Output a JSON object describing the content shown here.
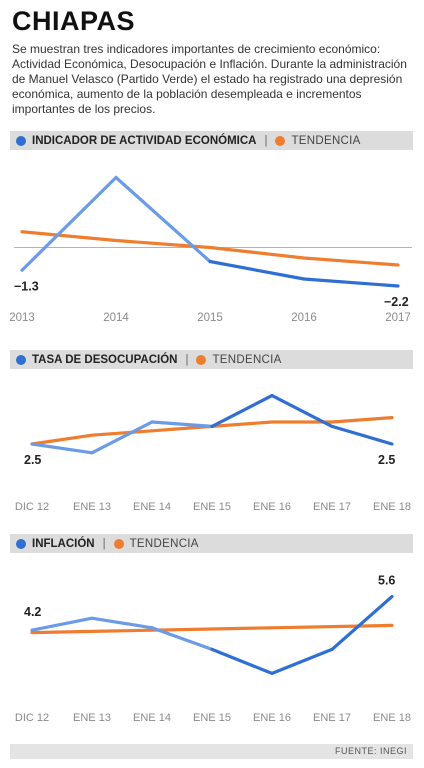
{
  "title": "CHIAPAS",
  "intro": "Se muestran tres indicadores importantes de crecimiento económico: Actividad Económica, Desocupación e Inflación. Durante la administración de Manuel Velasco (Partido Verde) el estado ha registrado una depresión económica, aumento de la población desempleada e incrementos importantes de los precios.",
  "legend_trend": "TENDENCIA",
  "source": "FUENTE: INEGI",
  "colors": {
    "series": "#2f6fd3",
    "series_light": "#6b9be6",
    "trend": "#ee7d2f",
    "header_bg": "#dcdcdc"
  },
  "chart_data": [
    {
      "type": "line",
      "title": "INDICADOR DE ACTIVIDAD ECONÓMICA",
      "categories": [
        "2013",
        "2014",
        "2015",
        "2016",
        "2017"
      ],
      "series": [
        {
          "name": "INDICADOR DE ACTIVIDAD ECONÓMICA",
          "values": [
            -1.3,
            4.0,
            -0.8,
            -1.8,
            -2.2
          ]
        },
        {
          "name": "TENDENCIA",
          "values": [
            0.9,
            0.4,
            0.0,
            -0.6,
            -1.0
          ]
        }
      ],
      "data_labels": [
        {
          "index": 0,
          "text": "−1.3"
        },
        {
          "index": 4,
          "text": "−2.2"
        }
      ],
      "ylim": [
        -3,
        5
      ],
      "reference_line": 0,
      "grid": false
    },
    {
      "type": "line",
      "title": "TASA DE DESOCUPACIÓN",
      "categories": [
        "DIC 12",
        "ENE 13",
        "ENE 14",
        "ENE 15",
        "ENE 16",
        "ENE 17",
        "ENE 18"
      ],
      "series": [
        {
          "name": "TASA DE DESOCUPACIÓN",
          "values": [
            2.5,
            2.3,
            3.0,
            2.9,
            3.6,
            2.9,
            2.5
          ]
        },
        {
          "name": "TENDENCIA",
          "values": [
            2.5,
            2.7,
            2.8,
            2.9,
            3.0,
            3.0,
            3.1
          ]
        }
      ],
      "data_labels": [
        {
          "index": 0,
          "text": "2.5"
        },
        {
          "index": 6,
          "text": "2.5"
        }
      ],
      "ylim": [
        1.5,
        4.0
      ],
      "grid": false
    },
    {
      "type": "line",
      "title": "INFLACIÓN",
      "categories": [
        "DIC 12",
        "ENE 13",
        "ENE 14",
        "ENE 15",
        "ENE 16",
        "ENE 17",
        "ENE 18"
      ],
      "series": [
        {
          "name": "INFLACIÓN",
          "values": [
            4.2,
            4.7,
            4.3,
            3.4,
            2.4,
            3.4,
            5.6
          ]
        },
        {
          "name": "TENDENCIA",
          "values": [
            4.1,
            4.15,
            4.2,
            4.25,
            4.3,
            4.35,
            4.4
          ]
        }
      ],
      "data_labels": [
        {
          "index": 0,
          "text": "4.2"
        },
        {
          "index": 6,
          "text": "5.6"
        }
      ],
      "ylim": [
        1.5,
        7.0
      ],
      "grid": false
    }
  ]
}
